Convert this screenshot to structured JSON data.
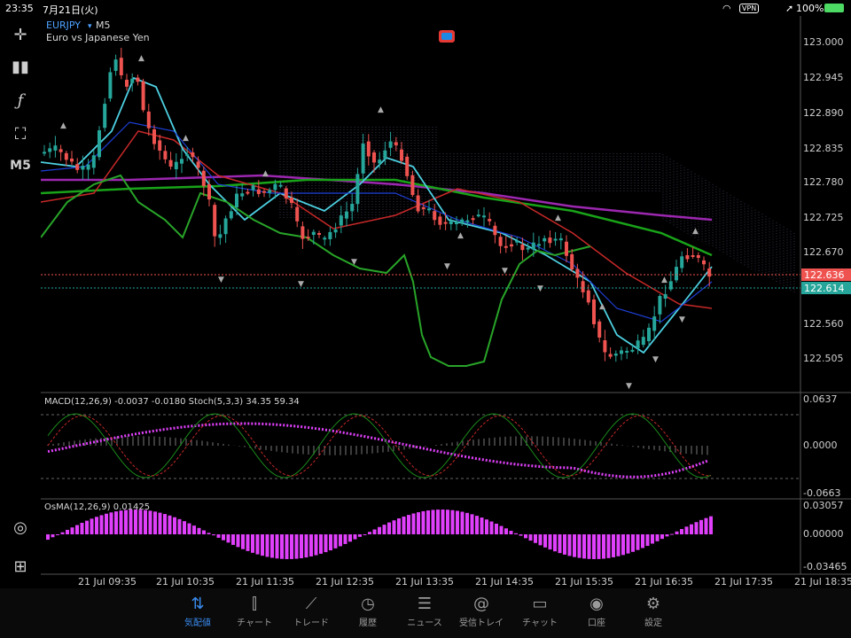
{
  "status_bar": {
    "time": "23:35",
    "date": "7月21日(火)",
    "vpn": "VPN",
    "battery": "100%"
  },
  "chart": {
    "symbol": "EURJPY",
    "timeframe": "M5",
    "description": "Euro vs Japanese Yen",
    "price_labels": [
      "123.000",
      "122.945",
      "122.890",
      "122.835",
      "122.780",
      "122.725",
      "122.670",
      "122.560",
      "122.505"
    ],
    "bid_price": "122.636",
    "ask_price": "122.614",
    "time_labels": [
      "21 Jul 09:35",
      "21 Jul 10:35",
      "21 Jul 11:35",
      "21 Jul 12:35",
      "21 Jul 13:35",
      "21 Jul 14:35",
      "21 Jul 15:35",
      "21 Jul 16:35",
      "21 Jul 17:35",
      "21 Jul 18:35"
    ]
  },
  "macd_panel": {
    "label": "MACD(12,26,9) -0.0037 -0.0180 Stoch(5,3,3) 34.35 59.34",
    "scale": [
      "0.0637",
      "0.0000",
      "-0.0663"
    ]
  },
  "osma_panel": {
    "label": "OsMA(12,26,9) 0.01425",
    "scale": [
      "0.03057",
      "0.00000",
      "-0.03465"
    ]
  },
  "tools": [
    "crosshair-icon",
    "chart-type-icon",
    "function-icon",
    "objects-icon",
    "timeframe-label"
  ],
  "tool_timeframe": "M5",
  "tabs": [
    {
      "label": "気配値",
      "active": true
    },
    {
      "label": "チャート",
      "active": false
    },
    {
      "label": "トレード",
      "active": false
    },
    {
      "label": "履歴",
      "active": false
    },
    {
      "label": "ニュース",
      "active": false
    },
    {
      "label": "受信トレイ",
      "active": false
    },
    {
      "label": "チャット",
      "active": false
    },
    {
      "label": "口座",
      "active": false
    },
    {
      "label": "設定",
      "active": false
    }
  ],
  "colors": {
    "bull": "#26a69a",
    "bear": "#ef5350",
    "accent": "#3a8bef",
    "macd": "#e040fb"
  }
}
